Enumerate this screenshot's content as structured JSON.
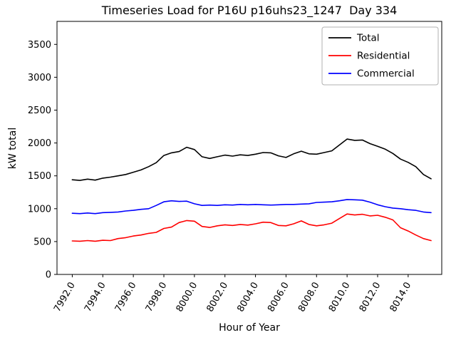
{
  "chart_data": {
    "type": "line",
    "title": "Timeseries Load for P16U p16uhs23_1247  Day 334",
    "xlabel": "Hour of Year",
    "ylabel": "kW total",
    "grid": false,
    "legend_position": "upper right",
    "xlim": [
      7991.0,
      8016.2
    ],
    "ylim": [
      0,
      3850
    ],
    "x_ticks": [
      7992,
      7994,
      7996,
      7998,
      8000,
      8002,
      8004,
      8006,
      8008,
      8010,
      8012,
      8014
    ],
    "x_tick_labels": [
      "7992.0",
      "7994.0",
      "7996.0",
      "7998.0",
      "8000.0",
      "8002.0",
      "8004.0",
      "8006.0",
      "8008.0",
      "8010.0",
      "8012.0",
      "8014.0"
    ],
    "y_ticks": [
      0,
      500,
      1000,
      1500,
      2000,
      2500,
      3000,
      3500
    ],
    "y_tick_labels": [
      "0",
      "500",
      "1000",
      "1500",
      "2000",
      "2500",
      "3000",
      "3500"
    ],
    "x": [
      7992.0,
      7992.5,
      7993.0,
      7993.5,
      7994.0,
      7994.5,
      7995.0,
      7995.5,
      7996.0,
      7996.5,
      7997.0,
      7997.5,
      7998.0,
      7998.5,
      7999.0,
      7999.5,
      8000.0,
      8000.5,
      8001.0,
      8001.5,
      8002.0,
      8002.5,
      8003.0,
      8003.5,
      8004.0,
      8004.5,
      8005.0,
      8005.5,
      8006.0,
      8006.5,
      8007.0,
      8007.5,
      8008.0,
      8008.5,
      8009.0,
      8009.5,
      8010.0,
      8010.5,
      8011.0,
      8011.5,
      8012.0,
      8012.5,
      8013.0,
      8013.5,
      8014.0,
      8014.5,
      8015.0,
      8015.5
    ],
    "series": [
      {
        "name": "Total",
        "color": "#000000",
        "values": [
          1440,
          1430,
          1450,
          1435,
          1465,
          1480,
          1500,
          1520,
          1555,
          1590,
          1640,
          1700,
          1810,
          1850,
          1870,
          1935,
          1900,
          1790,
          1765,
          1790,
          1815,
          1800,
          1820,
          1810,
          1830,
          1855,
          1850,
          1805,
          1780,
          1835,
          1875,
          1835,
          1830,
          1855,
          1880,
          1970,
          2060,
          2040,
          2045,
          1990,
          1950,
          1905,
          1840,
          1755,
          1705,
          1640,
          1520,
          1455
        ]
      },
      {
        "name": "Residential",
        "color": "#ff0000",
        "values": [
          510,
          505,
          515,
          505,
          520,
          515,
          545,
          560,
          585,
          600,
          625,
          640,
          700,
          720,
          790,
          820,
          810,
          730,
          715,
          740,
          755,
          745,
          760,
          750,
          770,
          795,
          790,
          745,
          740,
          770,
          815,
          760,
          740,
          755,
          780,
          850,
          920,
          905,
          915,
          890,
          900,
          870,
          830,
          710,
          660,
          600,
          545,
          515
        ]
      },
      {
        "name": "Commercial",
        "color": "#0000ff",
        "values": [
          930,
          925,
          935,
          925,
          940,
          945,
          950,
          965,
          975,
          990,
          1000,
          1050,
          1105,
          1120,
          1110,
          1115,
          1075,
          1050,
          1055,
          1050,
          1060,
          1055,
          1065,
          1060,
          1065,
          1060,
          1055,
          1060,
          1065,
          1065,
          1070,
          1075,
          1095,
          1100,
          1105,
          1120,
          1140,
          1135,
          1130,
          1100,
          1060,
          1030,
          1010,
          1000,
          985,
          975,
          950,
          940
        ]
      }
    ]
  }
}
